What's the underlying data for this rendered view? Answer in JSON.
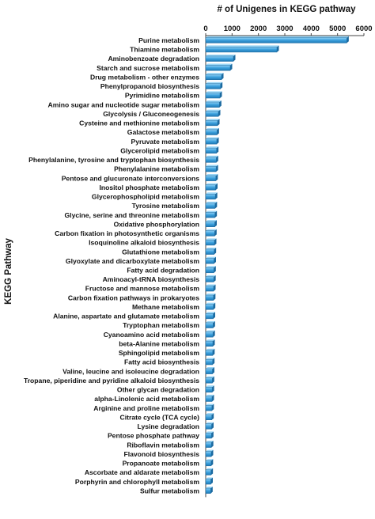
{
  "chart_data": {
    "type": "bar",
    "orientation": "horizontal",
    "title": "# of Unigenes in KEGG pathway",
    "ylabel": "KEGG Pathway",
    "xlim": [
      0,
      6000
    ],
    "xticks": [
      "0",
      "1000",
      "2000",
      "3000",
      "4000",
      "5000",
      "6000"
    ],
    "x_axis_position": "top",
    "grid": false,
    "bar_color": "#3a9fdc",
    "categories": [
      "Purine metabolism",
      "Thiamine metabolism",
      "Aminobenzoate degradation",
      "Starch and sucrose metabolism",
      "Drug metabolism - other enzymes",
      "Phenylpropanoid biosynthesis",
      "Pyrimidine metabolism",
      "Amino sugar and nucleotide sugar metabolism",
      "Glycolysis / Gluconeogenesis",
      "Cysteine and methionine metabolism",
      "Galactose metabolism",
      "Pyruvate metabolism",
      "Glycerolipid metabolism",
      "Phenylalanine, tyrosine and tryptophan biosynthesis",
      "Phenylalanine metabolism",
      "Pentose and glucuronate interconversions",
      "Inositol phosphate metabolism",
      "Glycerophospholipid metabolism",
      "Tyrosine metabolism",
      "Glycine, serine and threonine metabolism",
      "Oxidative phosphorylation",
      "Carbon fixation in photosynthetic organisms",
      "Isoquinoline alkaloid biosynthesis",
      "Glutathione metabolism",
      "Glyoxylate and dicarboxylate metabolism",
      "Fatty acid degradation",
      "Aminoacyl-tRNA biosynthesis",
      "Fructose and mannose metabolism",
      "Carbon fixation pathways in prokaryotes",
      "Methane metabolism",
      "Alanine, aspartate and glutamate metabolism",
      "Tryptophan metabolism",
      "Cyanoamino acid metabolism",
      "beta-Alanine metabolism",
      "Sphingolipid metabolism",
      "Fatty acid biosynthesis",
      "Valine, leucine and isoleucine degradation",
      "Tropane, piperidine and pyridine alkaloid biosynthesis",
      "Other glycan degradation",
      "alpha-Linolenic acid metabolism",
      "Arginine and proline metabolism",
      "Citrate cycle (TCA cycle)",
      "Lysine degradation",
      "Pentose phosphate pathway",
      "Riboflavin metabolism",
      "Flavonoid biosynthesis",
      "Propanoate metabolism",
      "Ascorbate and aldarate metabolism",
      "Porphyrin and chlorophyll metabolism",
      "Sulfur metabolism"
    ],
    "values": [
      5350,
      2700,
      1050,
      930,
      600,
      560,
      540,
      520,
      480,
      450,
      430,
      420,
      410,
      400,
      395,
      385,
      375,
      365,
      355,
      350,
      345,
      340,
      330,
      320,
      315,
      310,
      305,
      300,
      295,
      290,
      285,
      280,
      275,
      270,
      265,
      260,
      255,
      250,
      245,
      240,
      235,
      230,
      225,
      220,
      215,
      210,
      205,
      200,
      195,
      190
    ]
  }
}
